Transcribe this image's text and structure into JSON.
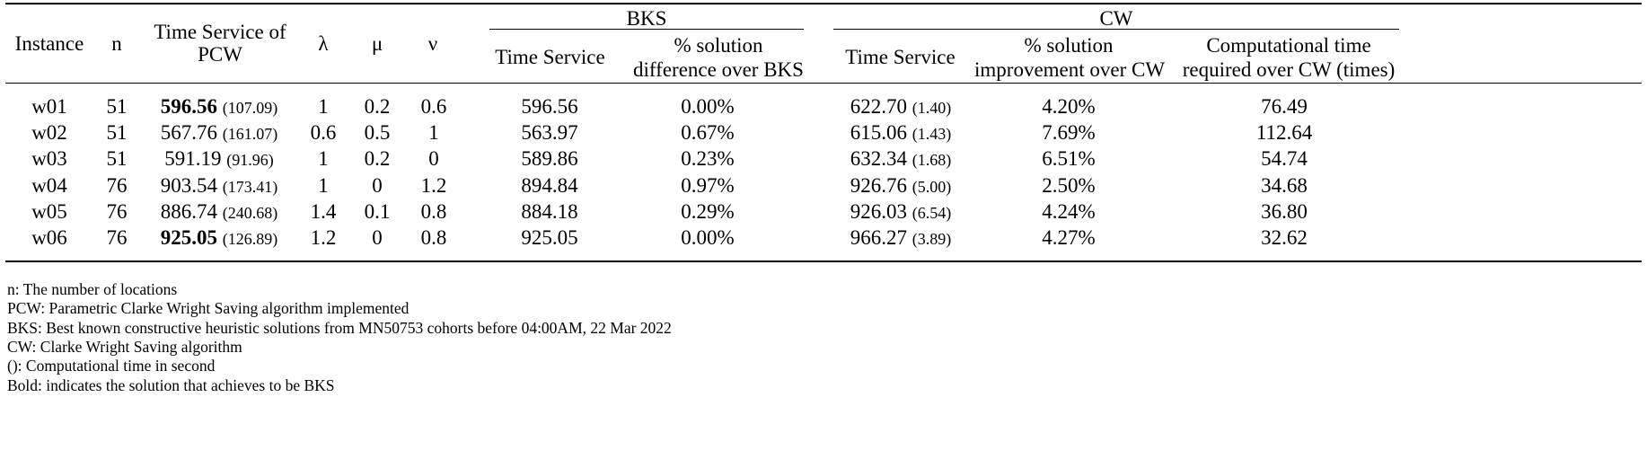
{
  "table": {
    "headers": {
      "instance": "Instance",
      "n": "n",
      "time_service_pcw_line1": "Time Service of",
      "time_service_pcw_line2": "PCW",
      "lambda": "λ",
      "mu": "μ",
      "nu": "ν",
      "group_bks": "BKS",
      "group_cw": "CW",
      "bks_time_service": "Time Service",
      "bks_pct_line1": "% solution",
      "bks_pct_line2": "difference over BKS",
      "cw_time_service": "Time Service",
      "cw_pct_line1": "% solution",
      "cw_pct_line2": "improvement over CW",
      "cw_comp_line1": "Computational time",
      "cw_comp_line2": "required over CW (times)"
    },
    "rows": [
      {
        "instance": "w01",
        "n": "51",
        "pcw": "596.56",
        "pcw_time": "(107.09)",
        "pcw_bold": true,
        "lambda": "1",
        "mu": "0.2",
        "nu": "0.6",
        "bks": "596.56",
        "bks_diff": "0.00%",
        "cw": "622.70",
        "cw_time": "(1.40)",
        "cw_impr": "4.20%",
        "comp": "76.49"
      },
      {
        "instance": "w02",
        "n": "51",
        "pcw": "567.76",
        "pcw_time": "(161.07)",
        "pcw_bold": false,
        "lambda": "0.6",
        "mu": "0.5",
        "nu": "1",
        "bks": "563.97",
        "bks_diff": "0.67%",
        "cw": "615.06",
        "cw_time": "(1.43)",
        "cw_impr": "7.69%",
        "comp": "112.64"
      },
      {
        "instance": "w03",
        "n": "51",
        "pcw": "591.19",
        "pcw_time": "(91.96)",
        "pcw_bold": false,
        "lambda": "1",
        "mu": "0.2",
        "nu": "0",
        "bks": "589.86",
        "bks_diff": "0.23%",
        "cw": "632.34",
        "cw_time": "(1.68)",
        "cw_impr": "6.51%",
        "comp": "54.74"
      },
      {
        "instance": "w04",
        "n": "76",
        "pcw": "903.54",
        "pcw_time": "(173.41)",
        "pcw_bold": false,
        "lambda": "1",
        "mu": "0",
        "nu": "1.2",
        "bks": "894.84",
        "bks_diff": "0.97%",
        "cw": "926.76",
        "cw_time": "(5.00)",
        "cw_impr": "2.50%",
        "comp": "34.68"
      },
      {
        "instance": "w05",
        "n": "76",
        "pcw": "886.74",
        "pcw_time": "(240.68)",
        "pcw_bold": false,
        "lambda": "1.4",
        "mu": "0.1",
        "nu": "0.8",
        "bks": "884.18",
        "bks_diff": "0.29%",
        "cw": "926.03",
        "cw_time": "(6.54)",
        "cw_impr": "4.24%",
        "comp": "36.80"
      },
      {
        "instance": "w06",
        "n": "76",
        "pcw": "925.05",
        "pcw_time": "(126.89)",
        "pcw_bold": true,
        "lambda": "1.2",
        "mu": "0",
        "nu": "0.8",
        "bks": "925.05",
        "bks_diff": "0.00%",
        "cw": "966.27",
        "cw_time": "(3.89)",
        "cw_impr": "4.27%",
        "comp": "32.62"
      }
    ]
  },
  "notes": [
    "n: The number of locations",
    "PCW: Parametric Clarke Wright Saving algorithm implemented",
    "BKS: Best known constructive heuristic solutions from MN50753 cohorts before 04:00AM, 22 Mar 2022",
    "CW: Clarke Wright Saving algorithm",
    "(): Computational time in second",
    "Bold: indicates the solution that achieves to be BKS"
  ]
}
